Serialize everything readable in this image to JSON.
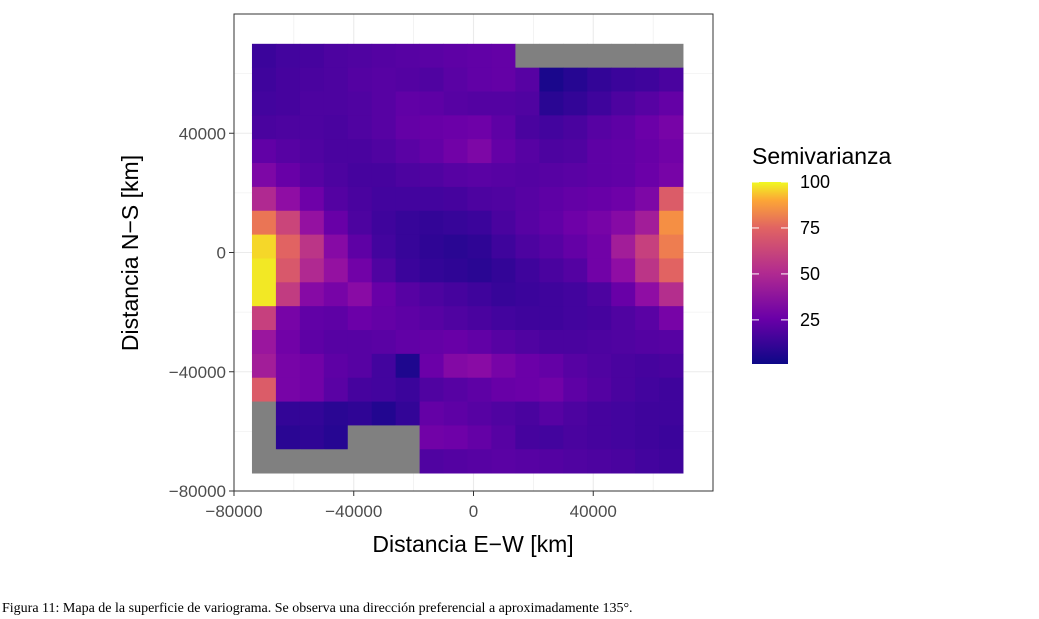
{
  "chart_data": {
    "type": "heatmap",
    "title": "",
    "xlabel": "Distancia E−W [km]",
    "ylabel": "Distancia N−S [km]",
    "xlim": [
      -80000,
      80000
    ],
    "ylim": [
      -80000,
      80000
    ],
    "x_ticks": [
      -80000,
      -40000,
      0,
      40000
    ],
    "x_tick_labels": [
      "−80000",
      "−40000",
      "0",
      "40000"
    ],
    "y_ticks": [
      -80000,
      -40000,
      0,
      40000
    ],
    "y_tick_labels": [
      "−80000",
      "−40000",
      "0",
      "40000"
    ],
    "grid": true,
    "background": "panel-border-theme-bw",
    "x_centers": [
      -70000,
      -62000,
      -54000,
      -46000,
      -38000,
      -30000,
      -22000,
      -14000,
      -6000,
      2000,
      10000,
      18000,
      26000,
      34000,
      42000,
      50000,
      58000,
      66000
    ],
    "y_centers": [
      66000,
      58000,
      50000,
      42000,
      34000,
      26000,
      18000,
      10000,
      2000,
      -6000,
      -14000,
      -22000,
      -30000,
      -38000,
      -46000,
      -54000,
      -62000,
      -70000
    ],
    "cell_size": 8000,
    "na_color": "#808080",
    "colorscale": "plasma",
    "z_range": [
      1,
      100
    ],
    "z": [
      [
        12,
        14,
        15,
        17,
        18,
        19,
        20,
        21,
        22,
        23,
        24,
        null,
        null,
        null,
        null,
        null,
        null,
        null
      ],
      [
        13,
        15,
        16,
        17,
        19,
        20,
        19,
        18,
        21,
        23,
        24,
        20,
        4,
        7,
        10,
        12,
        13,
        16
      ],
      [
        14,
        15,
        17,
        17,
        18,
        20,
        23,
        22,
        20,
        19,
        19,
        18,
        8,
        10,
        13,
        17,
        20,
        24
      ],
      [
        16,
        17,
        17,
        16,
        18,
        20,
        24,
        25,
        26,
        27,
        22,
        16,
        14,
        16,
        20,
        22,
        26,
        30
      ],
      [
        23,
        20,
        18,
        16,
        16,
        18,
        21,
        24,
        28,
        32,
        24,
        20,
        17,
        18,
        22,
        23,
        25,
        28
      ],
      [
        32,
        25,
        20,
        17,
        15,
        15,
        17,
        18,
        20,
        21,
        20,
        19,
        20,
        21,
        22,
        23,
        26,
        30
      ],
      [
        50,
        38,
        27,
        19,
        16,
        14,
        14,
        14,
        15,
        17,
        18,
        20,
        22,
        24,
        25,
        27,
        32,
        72
      ],
      [
        82,
        62,
        40,
        25,
        17,
        13,
        11,
        10,
        11,
        12,
        16,
        20,
        23,
        27,
        30,
        35,
        45,
        90
      ],
      [
        98,
        75,
        55,
        35,
        22,
        14,
        11,
        9,
        8,
        9,
        13,
        17,
        20,
        24,
        28,
        45,
        60,
        85
      ],
      [
        99,
        70,
        50,
        40,
        28,
        18,
        12,
        10,
        9,
        8,
        10,
        13,
        16,
        19,
        28,
        38,
        55,
        75
      ],
      [
        99,
        58,
        35,
        30,
        36,
        25,
        20,
        17,
        15,
        13,
        11,
        12,
        13,
        14,
        17,
        25,
        38,
        52
      ],
      [
        60,
        30,
        23,
        22,
        26,
        24,
        22,
        20,
        18,
        16,
        14,
        13,
        13,
        14,
        15,
        18,
        21,
        30
      ],
      [
        42,
        28,
        22,
        20,
        20,
        21,
        23,
        24,
        25,
        23,
        20,
        18,
        16,
        16,
        17,
        18,
        19,
        20
      ],
      [
        45,
        30,
        28,
        22,
        20,
        14,
        5,
        26,
        34,
        36,
        30,
        26,
        24,
        20,
        18,
        16,
        15,
        16
      ],
      [
        72,
        30,
        28,
        21,
        15,
        14,
        12,
        18,
        20,
        22,
        25,
        26,
        28,
        22,
        19,
        16,
        14,
        13
      ],
      [
        null,
        10,
        10,
        8,
        9,
        6,
        10,
        24,
        22,
        20,
        18,
        16,
        20,
        17,
        15,
        14,
        13,
        13
      ],
      [
        null,
        8,
        9,
        7,
        null,
        null,
        null,
        28,
        27,
        24,
        20,
        15,
        14,
        16,
        15,
        14,
        13,
        12
      ],
      [
        null,
        null,
        null,
        null,
        null,
        null,
        null,
        18,
        19,
        20,
        21,
        20,
        19,
        18,
        17,
        16,
        14,
        13
      ]
    ],
    "legend": {
      "title": "Semivarianza",
      "ticks": [
        100,
        75,
        50,
        25
      ],
      "tick_labels": [
        "100",
        "75",
        "50",
        "25"
      ],
      "placement": "right"
    }
  },
  "caption": "Figura 11: Mapa de la superficie de variograma. Se observa una dirección preferencial a aproximadamente 135°."
}
